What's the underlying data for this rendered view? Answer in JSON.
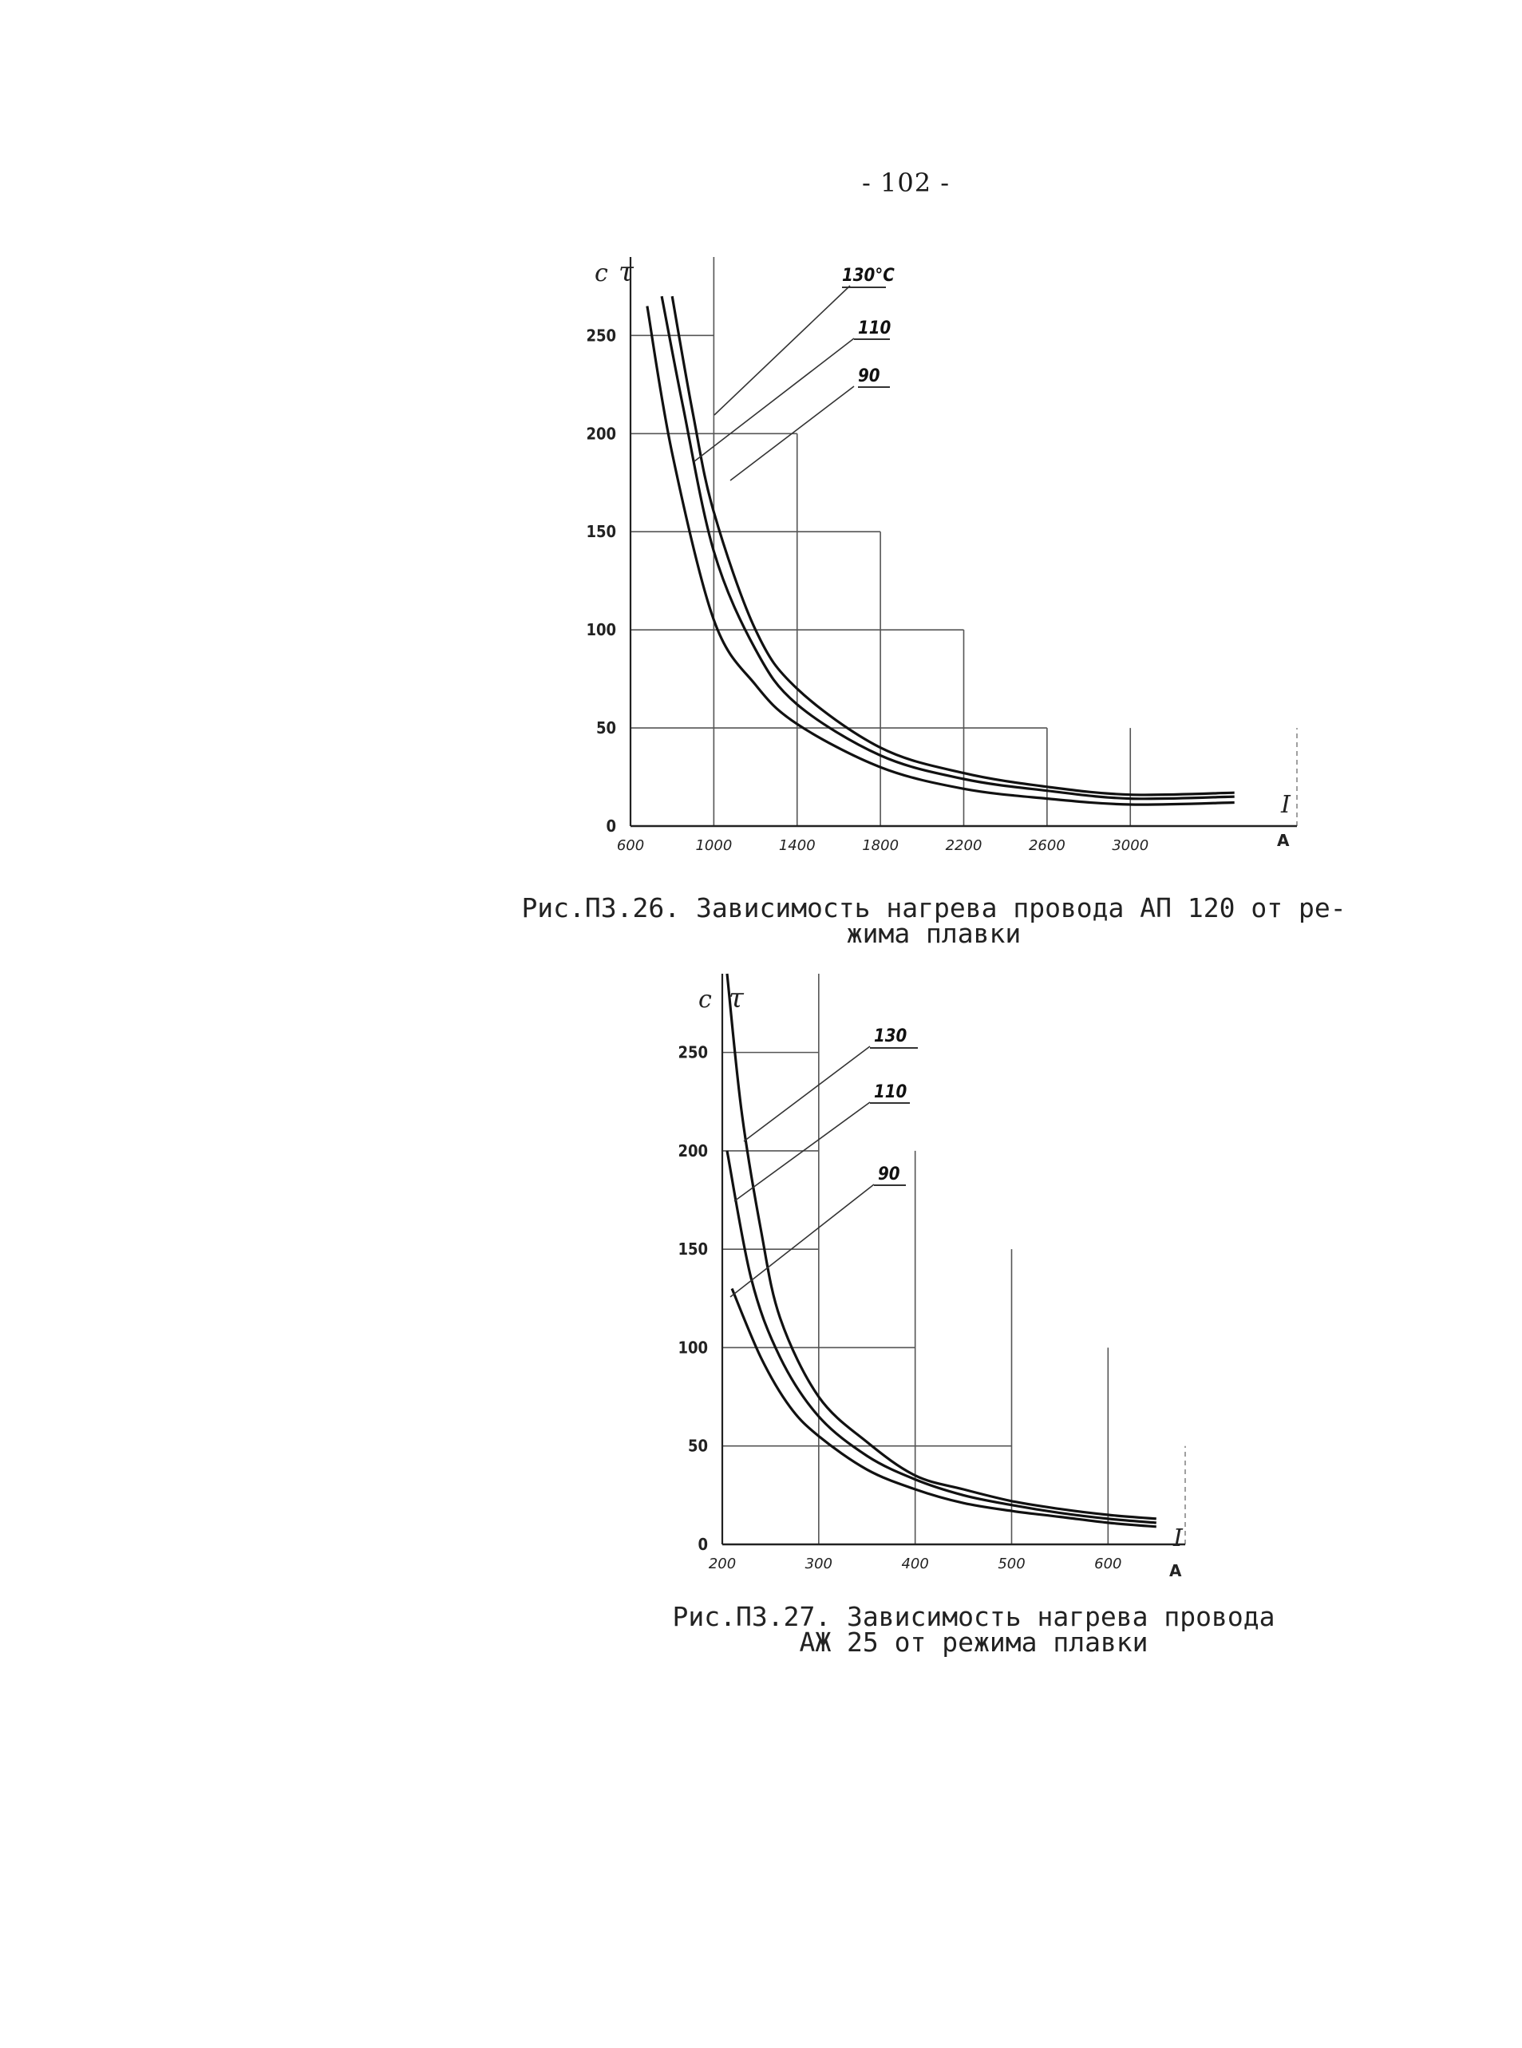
{
  "page": {
    "number": "- 102 -"
  },
  "figures": [
    {
      "caption_line1": "Рис.П3.26. Зависимость нагрева провода АП 120 от ре-",
      "caption_line2": "жима плавки",
      "ylabel_left": "c",
      "ylabel_tau": "τ",
      "xlabel_var": "I",
      "xlabel_unit": "A"
    },
    {
      "caption_line1": "Рис.П3.27. Зависимость нагрева провода",
      "caption_line2": "АЖ 25 от режима плавки",
      "ylabel_left": "c",
      "ylabel_tau": "τ",
      "xlabel_var": "I",
      "xlabel_unit": "A"
    }
  ],
  "chart_data": [
    {
      "type": "line",
      "xlabel": "I, A",
      "ylabel": "τ, c",
      "xlim": [
        600,
        3800
      ],
      "ylim": [
        0,
        290
      ],
      "x_ticks": [
        "600",
        "1000",
        "1400",
        "1800",
        "2200",
        "2600",
        "3000"
      ],
      "y_ticks": [
        "0",
        "50",
        "100",
        "150",
        "200",
        "250"
      ],
      "series": [
        {
          "name": "130°C",
          "x": [
            800,
            900,
            1000,
            1200,
            1400,
            1800,
            2200,
            2600,
            3000,
            3500
          ],
          "y": [
            270,
            210,
            160,
            100,
            70,
            40,
            27,
            20,
            16,
            17
          ]
        },
        {
          "name": "110",
          "x": [
            750,
            850,
            1000,
            1200,
            1400,
            1800,
            2200,
            2600,
            3000,
            3500
          ],
          "y": [
            270,
            215,
            140,
            90,
            62,
            36,
            24,
            18,
            14,
            15
          ]
        },
        {
          "name": "90",
          "x": [
            680,
            800,
            1000,
            1200,
            1400,
            1800,
            2200,
            2600,
            3000,
            3500
          ],
          "y": [
            265,
            190,
            105,
            72,
            52,
            30,
            19,
            14,
            11,
            12
          ]
        }
      ]
    },
    {
      "type": "line",
      "xlabel": "I, A",
      "ylabel": "τ, c",
      "xlim": [
        200,
        680
      ],
      "ylim": [
        0,
        290
      ],
      "x_ticks": [
        "200",
        "300",
        "400",
        "500",
        "600"
      ],
      "y_ticks": [
        "0",
        "50",
        "100",
        "150",
        "200",
        "250"
      ],
      "series": [
        {
          "name": "130",
          "x": [
            205,
            220,
            240,
            260,
            300,
            350,
            400,
            450,
            500,
            550,
            600,
            650
          ],
          "y": [
            290,
            220,
            160,
            115,
            75,
            52,
            35,
            28,
            22,
            18,
            15,
            13
          ]
        },
        {
          "name": "110",
          "x": [
            205,
            230,
            260,
            300,
            350,
            400,
            450,
            500,
            550,
            600,
            650
          ],
          "y": [
            200,
            135,
            95,
            65,
            45,
            33,
            25,
            20,
            16,
            13,
            11
          ]
        },
        {
          "name": "90",
          "x": [
            210,
            240,
            270,
            300,
            350,
            400,
            450,
            500,
            550,
            600,
            650
          ],
          "y": [
            130,
            95,
            70,
            55,
            38,
            28,
            21,
            17,
            14,
            11,
            9
          ]
        }
      ]
    }
  ]
}
